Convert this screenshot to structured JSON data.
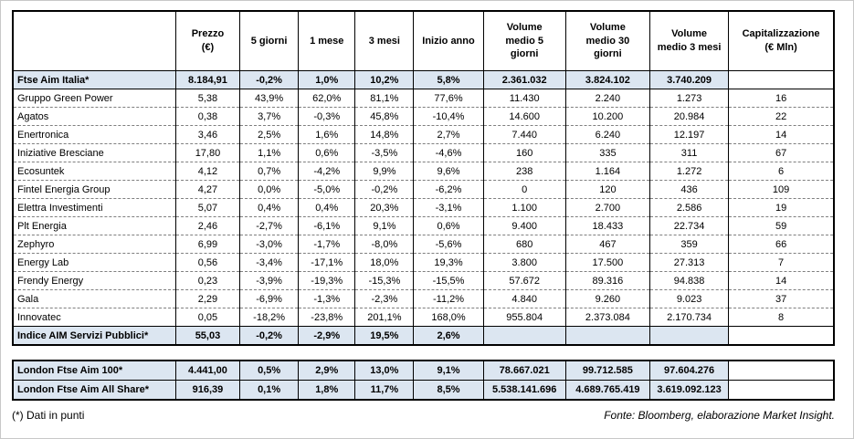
{
  "chart_data": {
    "type": "table",
    "highlight_color": "#dce6f1",
    "headers": [
      "",
      "Prezzo\n(€)",
      "5 giorni",
      "1 mese",
      "3 mesi",
      "Inizio anno",
      "Volume\nmedio 5\ngiorni",
      "Volume\nmedio 30\ngiorni",
      "Volume\nmedio 3 mesi",
      "Capitalizzazione\n(€ Mln)"
    ],
    "main_rows": [
      {
        "name": "Ftse Aim Italia*",
        "highlight": true,
        "values": [
          "8.184,91",
          "-0,2%",
          "1,0%",
          "10,2%",
          "5,8%",
          "2.361.032",
          "3.824.102",
          "3.740.209",
          ""
        ]
      },
      {
        "name": "Gruppo Green Power",
        "highlight": false,
        "values": [
          "5,38",
          "43,9%",
          "62,0%",
          "81,1%",
          "77,6%",
          "11.430",
          "2.240",
          "1.273",
          "16"
        ]
      },
      {
        "name": "Agatos",
        "highlight": false,
        "values": [
          "0,38",
          "3,7%",
          "-0,3%",
          "45,8%",
          "-10,4%",
          "14.600",
          "10.200",
          "20.984",
          "22"
        ]
      },
      {
        "name": "Enertronica",
        "highlight": false,
        "values": [
          "3,46",
          "2,5%",
          "1,6%",
          "14,8%",
          "2,7%",
          "7.440",
          "6.240",
          "12.197",
          "14"
        ]
      },
      {
        "name": "Iniziative Bresciane",
        "highlight": false,
        "values": [
          "17,80",
          "1,1%",
          "0,6%",
          "-3,5%",
          "-4,6%",
          "160",
          "335",
          "311",
          "67"
        ]
      },
      {
        "name": "Ecosuntek",
        "highlight": false,
        "values": [
          "4,12",
          "0,7%",
          "-4,2%",
          "9,9%",
          "9,6%",
          "238",
          "1.164",
          "1.272",
          "6"
        ]
      },
      {
        "name": "Fintel Energia Group",
        "highlight": false,
        "values": [
          "4,27",
          "0,0%",
          "-5,0%",
          "-0,2%",
          "-6,2%",
          "0",
          "120",
          "436",
          "109"
        ]
      },
      {
        "name": "Elettra Investimenti",
        "highlight": false,
        "values": [
          "5,07",
          "0,4%",
          "0,4%",
          "20,3%",
          "-3,1%",
          "1.100",
          "2.700",
          "2.586",
          "19"
        ]
      },
      {
        "name": "Plt Energia",
        "highlight": false,
        "values": [
          "2,46",
          "-2,7%",
          "-6,1%",
          "9,1%",
          "0,6%",
          "9.400",
          "18.433",
          "22.734",
          "59"
        ]
      },
      {
        "name": "Zephyro",
        "highlight": false,
        "values": [
          "6,99",
          "-3,0%",
          "-1,7%",
          "-8,0%",
          "-5,6%",
          "680",
          "467",
          "359",
          "66"
        ]
      },
      {
        "name": "Energy Lab",
        "highlight": false,
        "values": [
          "0,56",
          "-3,4%",
          "-17,1%",
          "18,0%",
          "19,3%",
          "3.800",
          "17.500",
          "27.313",
          "7"
        ]
      },
      {
        "name": "Frendy Energy",
        "highlight": false,
        "values": [
          "0,23",
          "-3,9%",
          "-19,3%",
          "-15,3%",
          "-15,5%",
          "57.672",
          "89.316",
          "94.838",
          "14"
        ]
      },
      {
        "name": "Gala",
        "highlight": false,
        "values": [
          "2,29",
          "-6,9%",
          "-1,3%",
          "-2,3%",
          "-11,2%",
          "4.840",
          "9.260",
          "9.023",
          "37"
        ]
      },
      {
        "name": "Innovatec",
        "highlight": false,
        "values": [
          "0,05",
          "-18,2%",
          "-23,8%",
          "201,1%",
          "168,0%",
          "955.804",
          "2.373.084",
          "2.170.734",
          "8"
        ]
      },
      {
        "name": "Indice AIM Servizi Pubblici*",
        "highlight": true,
        "values": [
          "55,03",
          "-0,2%",
          "-2,9%",
          "19,5%",
          "2,6%",
          "",
          "",
          "",
          ""
        ]
      }
    ],
    "london_rows": [
      {
        "name": "London Ftse Aim 100*",
        "highlight": true,
        "values": [
          "4.441,00",
          "0,5%",
          "2,9%",
          "13,0%",
          "9,1%",
          "78.667.021",
          "99.712.585",
          "97.604.276",
          ""
        ]
      },
      {
        "name": "London Ftse Aim All Share*",
        "highlight": true,
        "values": [
          "916,39",
          "0,1%",
          "1,8%",
          "11,7%",
          "8,5%",
          "5.538.141.696",
          "4.689.765.419",
          "3.619.092.123",
          ""
        ]
      }
    ]
  },
  "footer": {
    "note": "(*) Dati in punti",
    "source": "Fonte: Bloomberg, elaborazione Market Insight."
  }
}
